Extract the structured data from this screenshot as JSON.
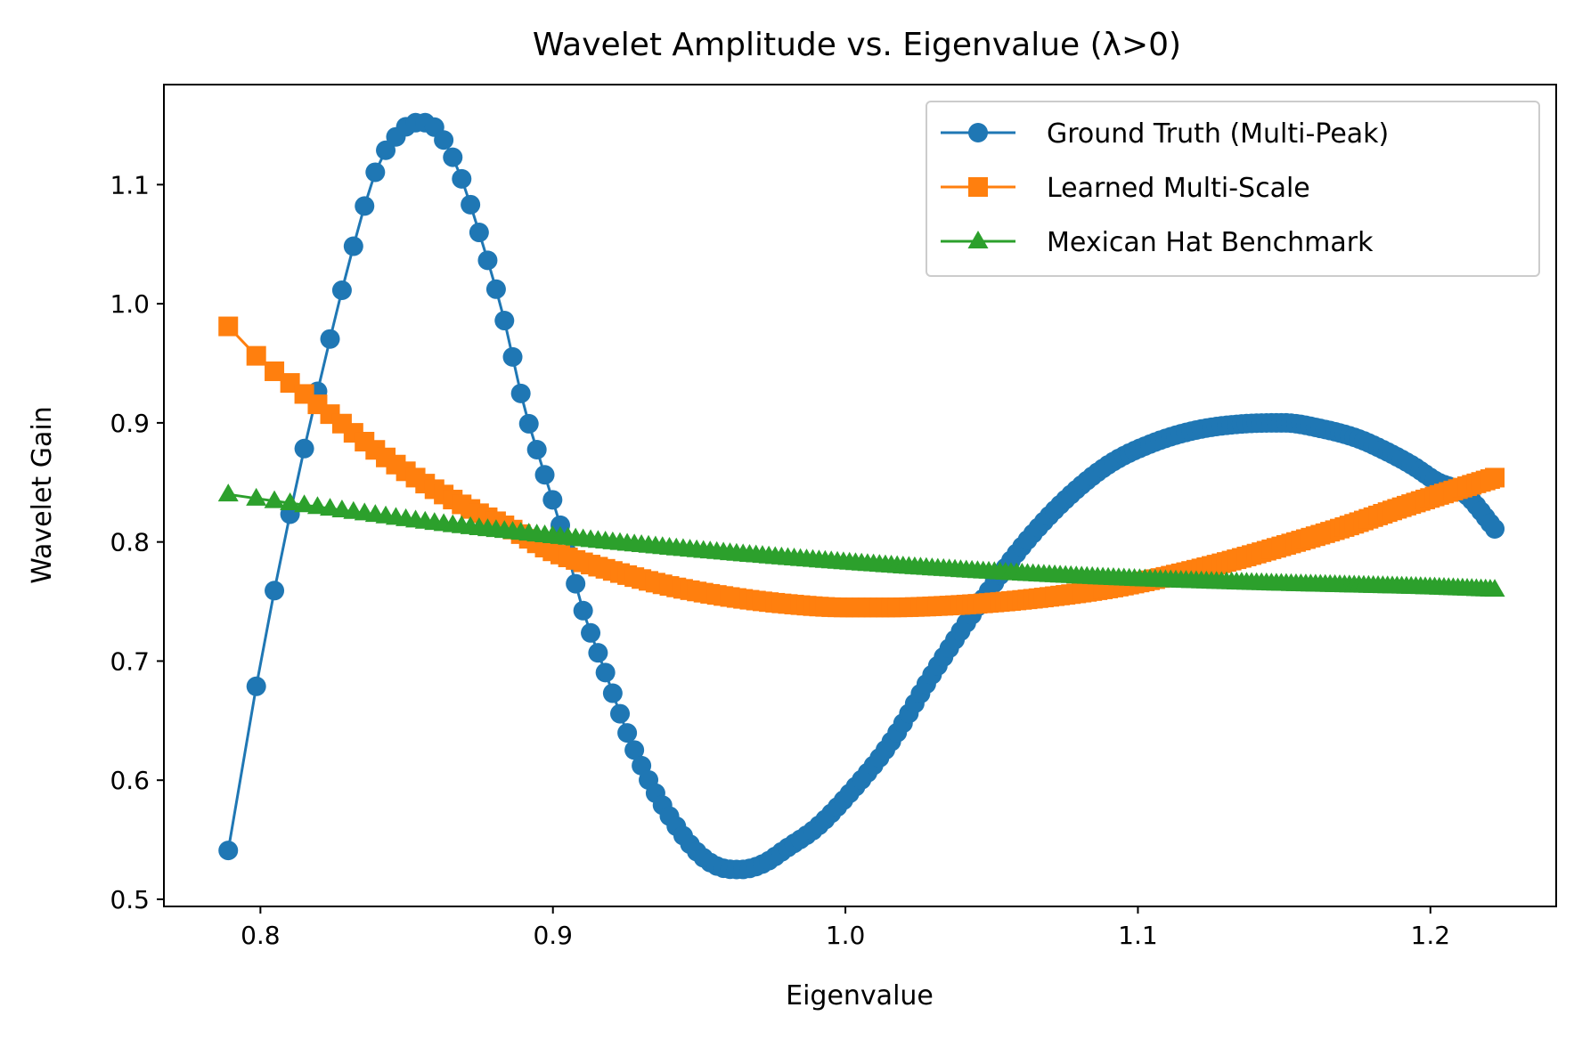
{
  "chart_data": {
    "type": "line",
    "title": "Wavelet Amplitude vs. Eigenvalue (λ>0)",
    "xlabel": "Eigenvalue",
    "ylabel": "Wavelet Gain",
    "xlim": [
      0.767,
      1.243
    ],
    "ylim": [
      0.494,
      1.184
    ],
    "xticks": [
      0.8,
      0.9,
      1.0,
      1.1,
      1.2
    ],
    "xtick_labels": [
      "0.8",
      "0.9",
      "1.0",
      "1.1",
      "1.2"
    ],
    "yticks": [
      0.5,
      0.6,
      0.7,
      0.8,
      0.9,
      1.0,
      1.1
    ],
    "ytick_labels": [
      "0.5",
      "0.6",
      "0.7",
      "0.8",
      "0.9",
      "1.0",
      "1.1"
    ],
    "grid": false,
    "legend_position": "top-right",
    "x_range": [
      0.789,
      1.222
    ],
    "num_points": 200,
    "series": [
      {
        "name": "Ground Truth (Multi-Peak)",
        "color": "#1f77b4",
        "marker": "circle",
        "anchors": {
          "x": [
            0.789,
            0.8,
            0.812,
            0.822,
            0.832,
            0.84,
            0.847,
            0.853,
            0.857,
            0.862,
            0.868,
            0.875,
            0.883,
            0.89,
            0.897,
            0.903,
            0.91,
            0.918,
            0.926,
            0.934,
            0.942,
            0.95,
            0.957,
            0.964,
            0.972,
            0.98,
            0.99,
            1.0,
            1.015,
            1.03,
            1.045,
            1.06,
            1.075,
            1.09,
            1.105,
            1.12,
            1.135,
            1.15,
            1.163,
            1.175,
            1.185,
            1.194,
            1.202,
            1.212,
            1.222
          ],
          "y": [
            0.541,
            0.698,
            0.845,
            0.952,
            1.05,
            1.115,
            1.142,
            1.152,
            1.152,
            1.14,
            1.11,
            1.058,
            0.99,
            0.915,
            0.858,
            0.81,
            0.745,
            0.69,
            0.636,
            0.594,
            0.562,
            0.538,
            0.527,
            0.525,
            0.53,
            0.543,
            0.56,
            0.585,
            0.63,
            0.69,
            0.745,
            0.795,
            0.835,
            0.865,
            0.883,
            0.894,
            0.899,
            0.9,
            0.895,
            0.887,
            0.876,
            0.864,
            0.851,
            0.84,
            0.811
          ]
        }
      },
      {
        "name": "Learned Multi-Scale",
        "color": "#ff7f0e",
        "marker": "square",
        "anchors": {
          "x": [
            0.789,
            0.8,
            0.812,
            0.825,
            0.84,
            0.855,
            0.87,
            0.885,
            0.9,
            0.92,
            0.94,
            0.96,
            0.98,
            1.0,
            1.015,
            1.03,
            1.05,
            1.07,
            1.09,
            1.11,
            1.13,
            1.15,
            1.17,
            1.19,
            1.205,
            1.222
          ],
          "y": [
            0.981,
            0.953,
            0.93,
            0.905,
            0.876,
            0.851,
            0.83,
            0.812,
            0.792,
            0.776,
            0.763,
            0.754,
            0.748,
            0.745,
            0.745,
            0.746,
            0.749,
            0.754,
            0.761,
            0.771,
            0.783,
            0.797,
            0.812,
            0.829,
            0.841,
            0.854
          ]
        }
      },
      {
        "name": "Mexican Hat Benchmark",
        "color": "#2ca02c",
        "marker": "triangle",
        "anchors": {
          "x": [
            0.789,
            0.8,
            0.812,
            0.83,
            0.86,
            0.9,
            0.95,
            1.0,
            1.05,
            1.1,
            1.15,
            1.2,
            1.222
          ],
          "y": [
            0.84,
            0.836,
            0.832,
            0.826,
            0.816,
            0.805,
            0.793,
            0.783,
            0.775,
            0.769,
            0.765,
            0.762,
            0.76
          ]
        }
      }
    ]
  }
}
